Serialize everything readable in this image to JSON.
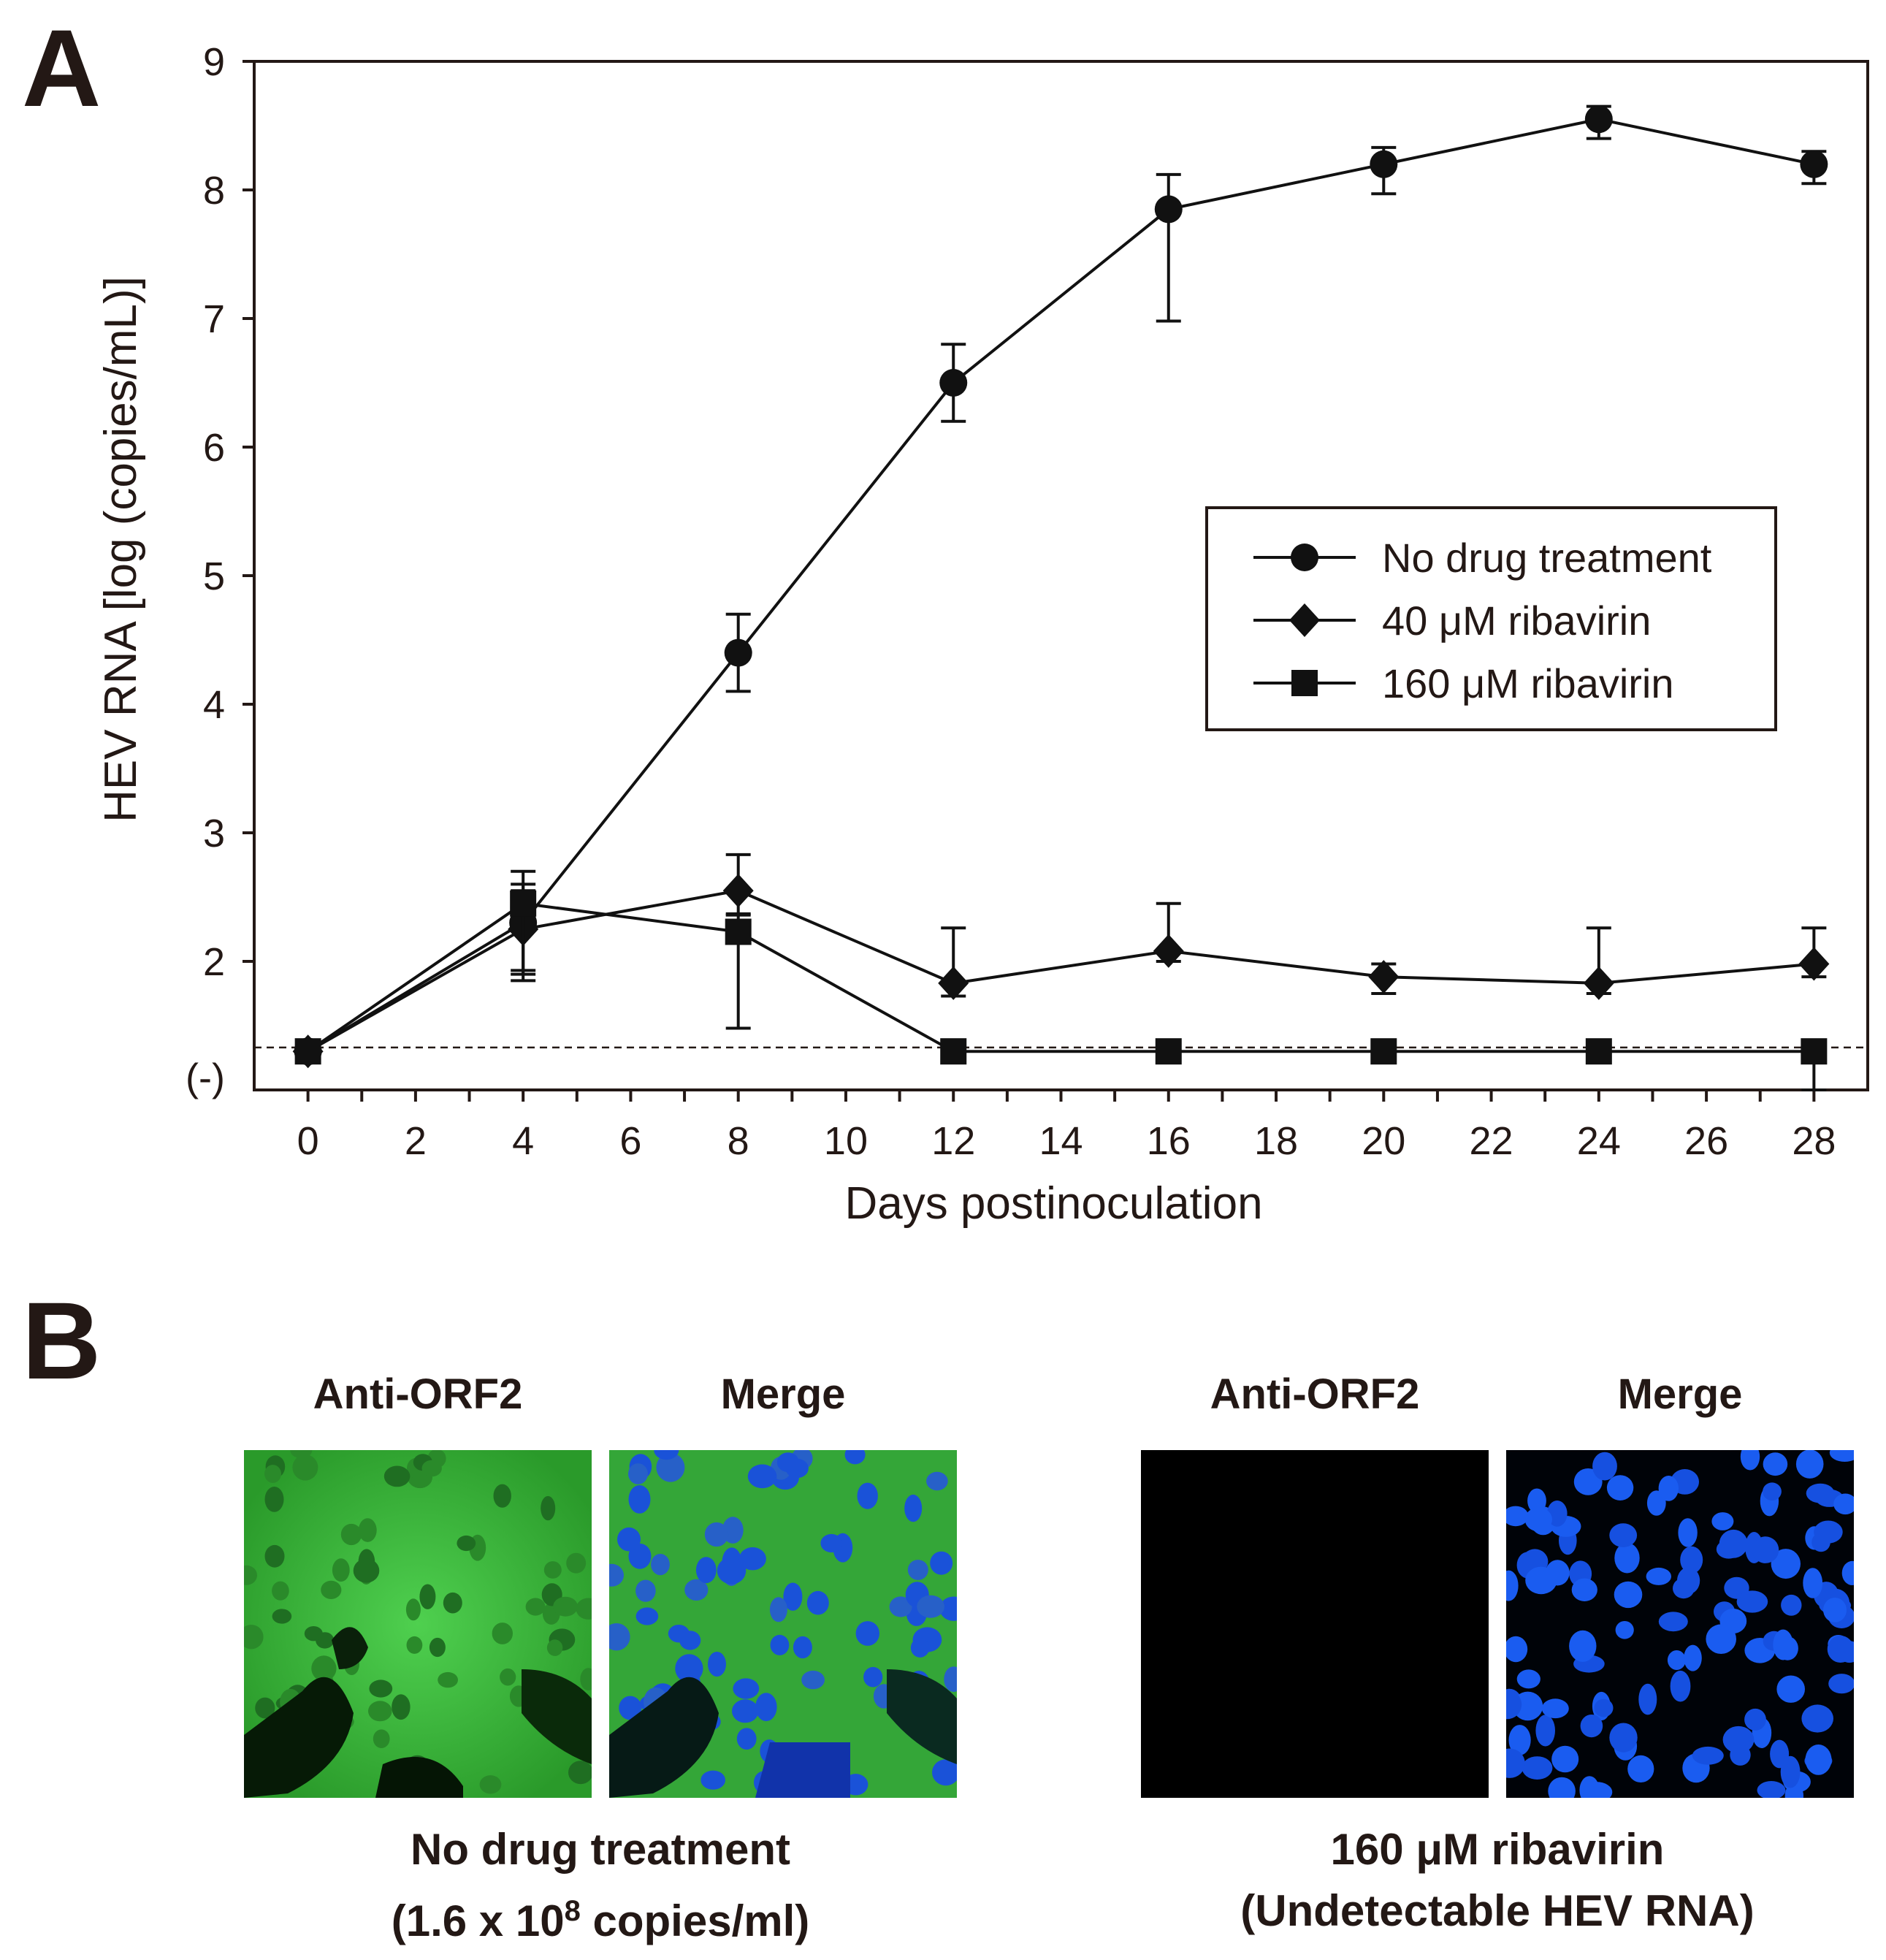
{
  "panel_a": {
    "letter": "A"
  },
  "panel_b": {
    "letter": "B",
    "groups": [
      {
        "left_title": "Anti-ORF2",
        "right_title": "Merge",
        "caption_line1": "No drug treatment",
        "caption_line2_prefix": "(1.6 x 10",
        "caption_line2_sup": "8",
        "caption_line2_suffix": " copies/ml)"
      },
      {
        "left_title": "Anti-ORF2",
        "right_title": "Merge",
        "caption_line1": "160 μM ribavirin",
        "caption_line2": "(Undetectable HEV RNA)"
      }
    ],
    "colors": {
      "green": "#3fbf3f",
      "blue": "#1a4fd6",
      "black": "#000000"
    }
  },
  "chart_data": {
    "type": "line",
    "xlabel": "Days postinoculation",
    "ylabel": "HEV RNA [log (copies/mL)]",
    "xlim": [
      -1,
      29
    ],
    "ylim": [
      1,
      9
    ],
    "x_ticks": [
      0,
      2,
      4,
      6,
      8,
      10,
      12,
      14,
      16,
      18,
      20,
      22,
      24,
      26,
      28
    ],
    "y_ticks": [
      2,
      3,
      4,
      5,
      6,
      7,
      8,
      9
    ],
    "y_tick_labels": [
      "2",
      "3",
      "4",
      "5",
      "6",
      "7",
      "8",
      "9"
    ],
    "y_bottom_label": "(-)",
    "y_bottom_label_value": 1.1,
    "detection_limit": 1.33,
    "legend_position": "center-right",
    "series": [
      {
        "name": "No drug treatment",
        "marker": "circle",
        "x": [
          0,
          4,
          8,
          12,
          16,
          20,
          24,
          28
        ],
        "y": [
          1.3,
          2.3,
          4.4,
          6.5,
          7.85,
          8.2,
          8.55,
          8.2
        ],
        "err_up": [
          0,
          0.4,
          0.3,
          0.3,
          0.27,
          0.13,
          0.1,
          0.1
        ],
        "err_down": [
          0,
          0.4,
          0.3,
          0.3,
          0.87,
          0.23,
          0.15,
          0.15
        ]
      },
      {
        "name": "40 μM ribavirin",
        "marker": "diamond",
        "x": [
          0,
          4,
          8,
          12,
          16,
          20,
          24,
          28
        ],
        "y": [
          1.3,
          2.25,
          2.55,
          1.83,
          2.08,
          1.88,
          1.83,
          1.98
        ],
        "err_up": [
          0,
          0.3,
          0.28,
          0.43,
          0.37,
          0.1,
          0.43,
          0.28
        ],
        "err_down": [
          0,
          0.4,
          0.18,
          0.1,
          0.08,
          0.13,
          0.08,
          0.1
        ]
      },
      {
        "name": "160 μM ribavirin",
        "marker": "square",
        "x": [
          0,
          4,
          8,
          12,
          16,
          20,
          24,
          28
        ],
        "y": [
          1.3,
          2.45,
          2.23,
          1.3,
          1.3,
          1.3,
          1.3,
          1.3
        ],
        "err_up": [
          0,
          0.15,
          0.13,
          0,
          0,
          0,
          0,
          0
        ],
        "err_down": [
          0,
          0.52,
          0.75,
          0,
          0,
          0,
          0,
          0.3
        ]
      }
    ]
  }
}
